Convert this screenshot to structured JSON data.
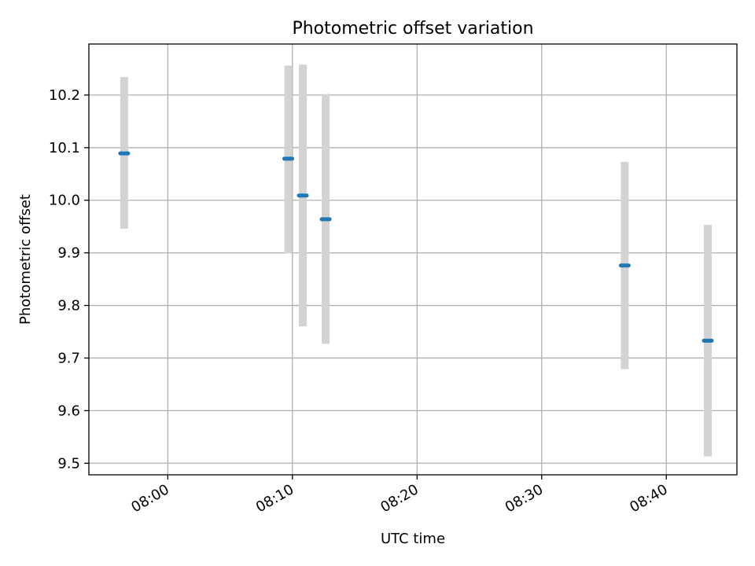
{
  "chart_data": {
    "type": "scatter",
    "title": "Photometric offset variation",
    "xlabel": "UTC time",
    "ylabel": "Photometric offset",
    "x_ticks": [
      "08:00",
      "08:10",
      "08:20",
      "08:30",
      "08:40"
    ],
    "y_ticks": [
      "9.5",
      "9.6",
      "9.7",
      "9.8",
      "9.9",
      "10.0",
      "10.1",
      "10.2"
    ],
    "xlim": [
      "07:53:40",
      "08:45:40"
    ],
    "ylim": [
      9.478,
      10.297
    ],
    "grid": true,
    "colors": {
      "marker": "#1f77b4",
      "errorbar": "#d3d3d3",
      "grid": "#b0b0b0"
    },
    "points": [
      {
        "x": "07:56:30",
        "y": 10.089,
        "ylow": 9.946,
        "yhigh": 10.234
      },
      {
        "x": "08:09:40",
        "y": 10.079,
        "ylow": 9.899,
        "yhigh": 10.256
      },
      {
        "x": "08:10:50",
        "y": 10.009,
        "ylow": 9.76,
        "yhigh": 10.258
      },
      {
        "x": "08:12:40",
        "y": 9.964,
        "ylow": 9.727,
        "yhigh": 10.202
      },
      {
        "x": "08:36:40",
        "y": 9.876,
        "ylow": 9.679,
        "yhigh": 10.073
      },
      {
        "x": "08:43:20",
        "y": 9.733,
        "ylow": 9.513,
        "yhigh": 9.953
      }
    ]
  }
}
